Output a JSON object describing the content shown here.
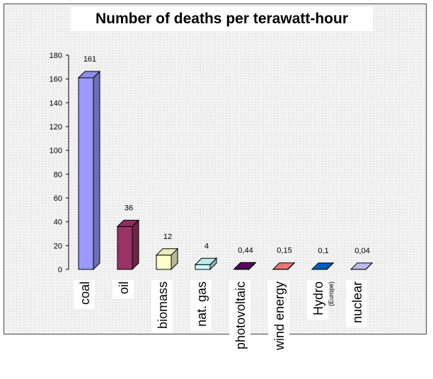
{
  "chart_data": {
    "type": "bar",
    "title": "Number of deaths per terawatt-hour",
    "xlabel": "",
    "ylabel": "",
    "ylim": [
      0,
      180
    ],
    "yticks": [
      "0",
      "20",
      "40",
      "60",
      "80",
      "100",
      "120",
      "140",
      "160",
      "180"
    ],
    "categories": [
      "coal",
      "oil",
      "biomass",
      "nat. gas",
      "photovoltaic",
      "wind energy",
      "Hydro",
      "nuclear"
    ],
    "category_notes": {
      "Hydro": "(Europe)"
    },
    "values": [
      161,
      36,
      12,
      4,
      0.44,
      0.15,
      0.1,
      0.04
    ],
    "value_labels": [
      "161",
      "36",
      "12",
      "4",
      "0,44",
      "0,15",
      "0,1",
      "0,04"
    ],
    "colors": [
      "#9999ff",
      "#993366",
      "#ffffcc",
      "#ccffff",
      "#660066",
      "#ff8080",
      "#0066cc",
      "#ccccff"
    ],
    "grid": false,
    "legend": "none"
  }
}
